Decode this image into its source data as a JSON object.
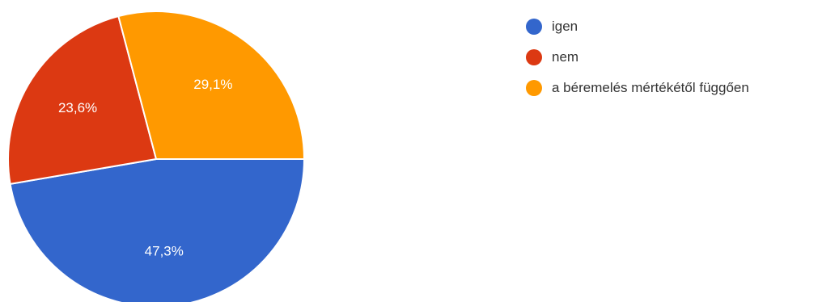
{
  "chart_data": {
    "type": "pie",
    "title": "",
    "slices": [
      {
        "label": "igen",
        "value": 47.3,
        "value_label": "47,3%",
        "color": "#3366cc"
      },
      {
        "label": "nem",
        "value": 23.6,
        "value_label": "23,6%",
        "color": "#dc3912"
      },
      {
        "label": "a béremelés mértékétől függően",
        "value": 29.1,
        "value_label": "29,1%",
        "color": "#ff9900"
      }
    ],
    "legend_position": "right"
  }
}
